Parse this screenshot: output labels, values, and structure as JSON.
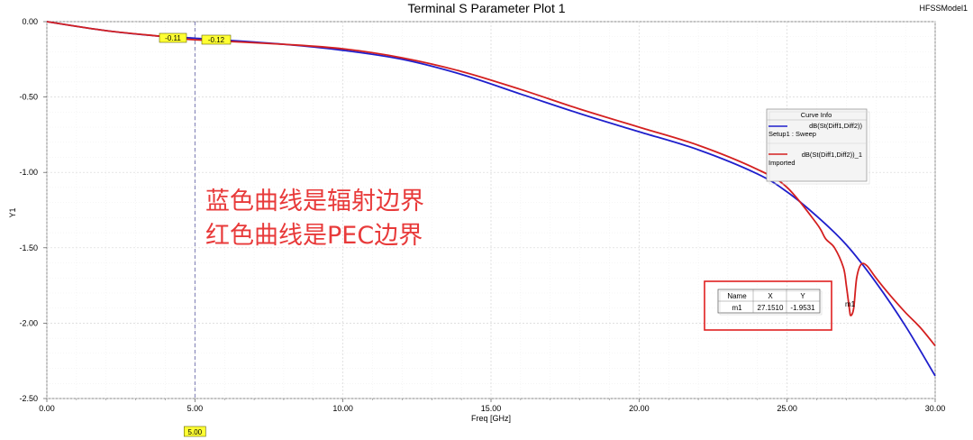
{
  "header": {
    "title": "Terminal S Parameter Plot 1",
    "model_name": "HFSSModel1"
  },
  "annotation": {
    "line1": "蓝色曲线是辐射边界",
    "line2": "红色曲线是PEC边界",
    "color": "#e83a3a"
  },
  "cursor": {
    "x_value": 5.0,
    "x_label": "5.00",
    "flag_blue": "-0.11",
    "flag_red": "-0.12",
    "flag_color": "#ffff33"
  },
  "marker_table": {
    "headers": [
      "Name",
      "X",
      "Y"
    ],
    "row": [
      "m1",
      "27.1510",
      "-1.9531"
    ],
    "marker_label": "m1",
    "highlight_color": "#e02020"
  },
  "legend": {
    "title": "Curve Info",
    "entries": [
      {
        "line1": "dB(St(Diff1,Diff2))",
        "line2": "Setup1 : Sweep",
        "color": "#1f1fcc"
      },
      {
        "line1": "dB(St(Diff1,Diff2))_1",
        "line2": "Imported",
        "color": "#d42020"
      }
    ]
  },
  "chart_data": {
    "type": "line",
    "title": "Terminal S Parameter Plot 1",
    "xlabel": "Freq [GHz]",
    "ylabel": "Y1",
    "xlim": [
      0,
      30
    ],
    "ylim": [
      -2.5,
      0
    ],
    "grid": true,
    "legend_position": "right",
    "x_ticks": [
      "0.00",
      "5.00",
      "10.00",
      "15.00",
      "20.00",
      "25.00",
      "30.00"
    ],
    "y_ticks": [
      "0.00",
      "-0.50",
      "-1.00",
      "-1.50",
      "-2.00",
      "-2.50"
    ],
    "series": [
      {
        "name": "dB(St(Diff1,Diff2))",
        "color": "#1f1fcc",
        "points": [
          [
            0,
            0
          ],
          [
            2,
            -0.06
          ],
          [
            4,
            -0.1
          ],
          [
            5,
            -0.11
          ],
          [
            8,
            -0.15
          ],
          [
            10,
            -0.19
          ],
          [
            12,
            -0.25
          ],
          [
            14,
            -0.35
          ],
          [
            16,
            -0.48
          ],
          [
            18,
            -0.61
          ],
          [
            20,
            -0.73
          ],
          [
            22,
            -0.85
          ],
          [
            24,
            -1.01
          ],
          [
            25,
            -1.13
          ],
          [
            26,
            -1.29
          ],
          [
            27,
            -1.48
          ],
          [
            28,
            -1.73
          ],
          [
            29,
            -2.02
          ],
          [
            30,
            -2.35
          ]
        ]
      },
      {
        "name": "dB(St(Diff1,Diff2))_1",
        "color": "#d42020",
        "points": [
          [
            0,
            0
          ],
          [
            2,
            -0.06
          ],
          [
            4,
            -0.1
          ],
          [
            5,
            -0.12
          ],
          [
            8,
            -0.15
          ],
          [
            10,
            -0.18
          ],
          [
            12,
            -0.24
          ],
          [
            14,
            -0.33
          ],
          [
            16,
            -0.45
          ],
          [
            18,
            -0.58
          ],
          [
            20,
            -0.7
          ],
          [
            22,
            -0.82
          ],
          [
            24,
            -0.98
          ],
          [
            25,
            -1.1
          ],
          [
            26,
            -1.34
          ],
          [
            26.3,
            -1.44
          ],
          [
            26.6,
            -1.5
          ],
          [
            26.9,
            -1.63
          ],
          [
            27.0,
            -1.75
          ],
          [
            27.1,
            -1.9
          ],
          [
            27.15,
            -1.95
          ],
          [
            27.25,
            -1.9
          ],
          [
            27.35,
            -1.7
          ],
          [
            27.5,
            -1.61
          ],
          [
            27.7,
            -1.62
          ],
          [
            28,
            -1.7
          ],
          [
            28.5,
            -1.82
          ],
          [
            29,
            -1.93
          ],
          [
            29.5,
            -2.03
          ],
          [
            30,
            -2.15
          ]
        ]
      }
    ]
  }
}
